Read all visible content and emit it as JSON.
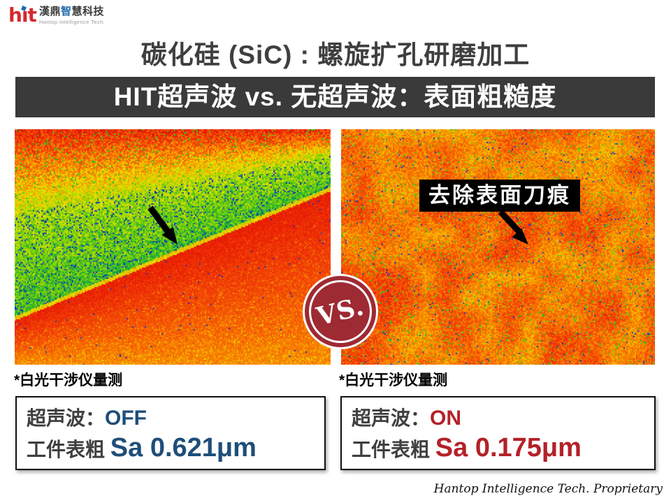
{
  "colors": {
    "title": "#3f3f3f",
    "banner_bg": "#3a3a3a",
    "banner_text": "#ffffff",
    "accent_off": "#1f4e79",
    "accent_on": "#b42128",
    "badge": "#9e2a33",
    "logo_red": "#d7282f",
    "logo_blue": "#1e6ab0"
  },
  "logo": {
    "brand": "hit",
    "brand_display": {
      "h": "h",
      "i_stem": "ı",
      "t": "t"
    },
    "cn_pre": "漢鼎",
    "cn_highlight": "智",
    "cn_post": "慧科技",
    "en": "Hantop Intelligence Tech."
  },
  "title": "碳化硅 (SiC) : 螺旋扩孔研磨加工",
  "banner": "HIT超声波 vs. 无超声波：表面粗糙度",
  "comparison": {
    "vs_label": "VS.",
    "right_annotation": "去除表面刀痕"
  },
  "captions": {
    "left": "*白光干涉仪量测",
    "right": "*白光干涉仪量测"
  },
  "results": {
    "left": {
      "param_label": "超声波：",
      "param_value": "OFF",
      "rough_label": "工件表粗 ",
      "rough_value": "Sa 0.621μm"
    },
    "right": {
      "param_label": "超声波：",
      "param_value": "ON",
      "rough_label": "工件表粗 ",
      "rough_value": "Sa 0.175μm"
    }
  },
  "footer": "Hantop Intelligence Tech. Proprietary"
}
